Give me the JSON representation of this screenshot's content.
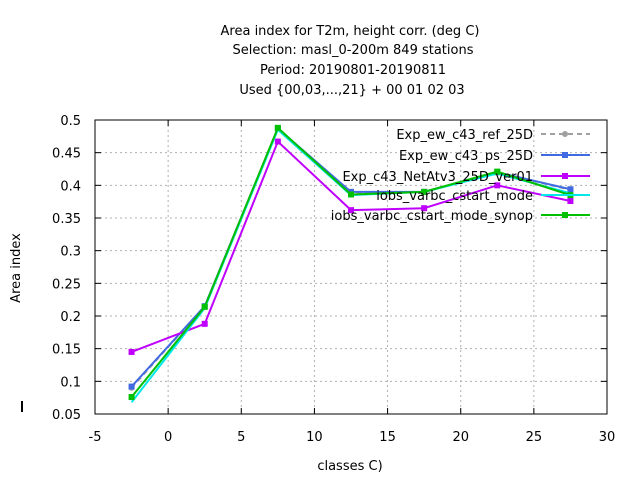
{
  "chart_data": {
    "type": "line",
    "title_lines": [
      "Area index  for T2m, height corr. (deg C)",
      "Selection: masl_0-200m    849 stations",
      "Period: 20190801-20190811",
      "Used {00,03,...,21} + 00 01 02 03"
    ],
    "xlabel": "classes C)",
    "ylabel": "Area index",
    "xlim": [
      -5,
      30
    ],
    "ylim": [
      0.05,
      0.5
    ],
    "xticks": [
      -5,
      0,
      5,
      10,
      15,
      20,
      25,
      30
    ],
    "yticks": [
      0.05,
      0.1,
      0.15,
      0.2,
      0.25,
      0.3,
      0.35,
      0.4,
      0.45,
      0.5
    ],
    "grid": true,
    "legend_position": "top-right",
    "x": [
      -2.5,
      2.5,
      7.5,
      12.5,
      17.5,
      22.5,
      27.5
    ],
    "series": [
      {
        "name": "Exp_ew_c43_ref_25D",
        "color": "#a0a0a0",
        "dashed": true,
        "marker": "circle",
        "values": [
          0.09,
          0.215,
          0.487,
          0.388,
          0.39,
          0.42,
          0.393
        ]
      },
      {
        "name": "Exp_ew_c43_ps_25D",
        "color": "#4169e1",
        "dashed": false,
        "marker": "square",
        "values": [
          0.092,
          0.215,
          0.487,
          0.39,
          0.39,
          0.42,
          0.394
        ]
      },
      {
        "name": "Exp_c43_NetAtv3_25D_ver01",
        "color": "#c000ff",
        "dashed": false,
        "marker": "square",
        "values": [
          0.145,
          0.188,
          0.467,
          0.362,
          0.365,
          0.4,
          0.376
        ]
      },
      {
        "name": "iobs_varbc_cstart_mode",
        "color": "#00e8e8",
        "dashed": false,
        "marker": "none",
        "values": [
          0.068,
          0.212,
          0.485,
          0.385,
          0.39,
          0.418,
          0.388
        ]
      },
      {
        "name": "iobs_varbc_cstart_mode_synop",
        "color": "#00c000",
        "dashed": false,
        "marker": "square",
        "values": [
          0.076,
          0.214,
          0.488,
          0.386,
          0.39,
          0.421,
          0.385
        ]
      }
    ]
  }
}
